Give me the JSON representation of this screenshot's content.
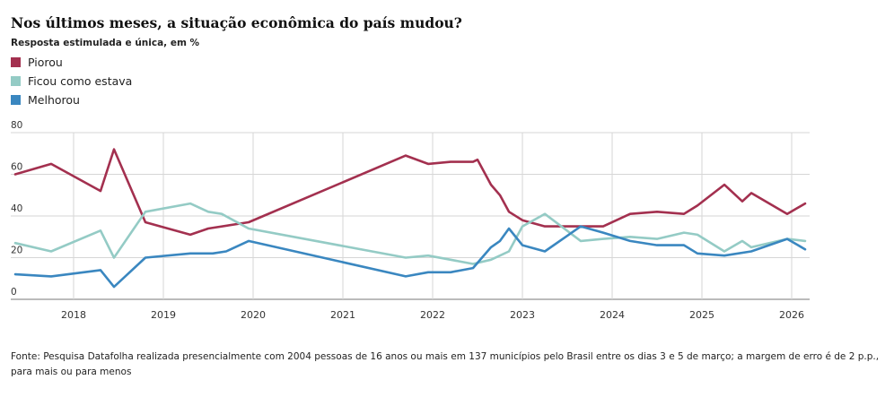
{
  "title": "Nos últimos meses, a situação econômica do país mudou?",
  "subtitle": "Resposta estimulada e única, em %",
  "source": "Fonte: Pesquisa Datafolha realizada presencialmente com 2004 pessoas de 16 anos ou mais em 137 municípios pelo Brasil entre os dias 3 e 5 de março; a margem de erro é de 2 p.p., para mais ou para menos",
  "chart_data": {
    "type": "line",
    "title": "Nos últimos meses, a situação econômica do país mudou?",
    "subtitle": "Resposta estimulada e única, em %",
    "xlabel": "",
    "ylabel": "",
    "ylim": [
      0,
      80
    ],
    "xlim": [
      2017.3,
      2026.2
    ],
    "yticks": [
      "0",
      "20",
      "40",
      "60",
      "80"
    ],
    "xticks": [
      "2018",
      "2019",
      "2020",
      "2021",
      "2022",
      "2023",
      "2024",
      "2025",
      "2026"
    ],
    "grid": true,
    "legend": "top-left",
    "series": [
      {
        "name": "Piorou",
        "color": "#a3304f",
        "points": [
          [
            2017.35,
            60
          ],
          [
            2017.75,
            65
          ],
          [
            2018.3,
            52
          ],
          [
            2018.45,
            72
          ],
          [
            2018.8,
            37
          ],
          [
            2019.3,
            31
          ],
          [
            2019.5,
            34
          ],
          [
            2019.95,
            37
          ],
          [
            2021.7,
            69
          ],
          [
            2021.95,
            65
          ],
          [
            2022.2,
            66
          ],
          [
            2022.45,
            66
          ],
          [
            2022.5,
            67
          ],
          [
            2022.65,
            55
          ],
          [
            2022.75,
            50
          ],
          [
            2022.85,
            42
          ],
          [
            2023.0,
            38
          ],
          [
            2023.25,
            35
          ],
          [
            2023.65,
            35
          ],
          [
            2023.9,
            35
          ],
          [
            2024.2,
            41
          ],
          [
            2024.5,
            42
          ],
          [
            2024.8,
            41
          ],
          [
            2024.95,
            45
          ],
          [
            2025.25,
            55
          ],
          [
            2025.45,
            47
          ],
          [
            2025.55,
            51
          ],
          [
            2025.95,
            41
          ],
          [
            2026.15,
            46
          ]
        ]
      },
      {
        "name": "Ficou como estava",
        "color": "#94cbc5",
        "points": [
          [
            2017.35,
            27
          ],
          [
            2017.75,
            23
          ],
          [
            2018.3,
            33
          ],
          [
            2018.45,
            20
          ],
          [
            2018.8,
            42
          ],
          [
            2019.3,
            46
          ],
          [
            2019.5,
            42
          ],
          [
            2019.65,
            41
          ],
          [
            2019.95,
            34
          ],
          [
            2021.7,
            20
          ],
          [
            2021.95,
            21
          ],
          [
            2022.2,
            19
          ],
          [
            2022.45,
            17
          ],
          [
            2022.65,
            19
          ],
          [
            2022.75,
            21
          ],
          [
            2022.85,
            23
          ],
          [
            2023.0,
            35
          ],
          [
            2023.25,
            41
          ],
          [
            2023.65,
            28
          ],
          [
            2023.9,
            29
          ],
          [
            2024.2,
            30
          ],
          [
            2024.5,
            29
          ],
          [
            2024.8,
            32
          ],
          [
            2024.95,
            31
          ],
          [
            2025.25,
            23
          ],
          [
            2025.45,
            28
          ],
          [
            2025.55,
            25
          ],
          [
            2025.95,
            29
          ],
          [
            2026.15,
            28
          ]
        ]
      },
      {
        "name": "Melhorou",
        "color": "#3a87c0",
        "points": [
          [
            2017.35,
            12
          ],
          [
            2017.75,
            11
          ],
          [
            2018.3,
            14
          ],
          [
            2018.45,
            6
          ],
          [
            2018.8,
            20
          ],
          [
            2019.3,
            22
          ],
          [
            2019.55,
            22
          ],
          [
            2019.7,
            23
          ],
          [
            2019.95,
            28
          ],
          [
            2021.7,
            11
          ],
          [
            2021.95,
            13
          ],
          [
            2022.2,
            13
          ],
          [
            2022.45,
            15
          ],
          [
            2022.65,
            25
          ],
          [
            2022.75,
            28
          ],
          [
            2022.85,
            34
          ],
          [
            2023.0,
            26
          ],
          [
            2023.25,
            23
          ],
          [
            2023.65,
            35
          ],
          [
            2023.9,
            32
          ],
          [
            2024.2,
            28
          ],
          [
            2024.5,
            26
          ],
          [
            2024.8,
            26
          ],
          [
            2024.95,
            22
          ],
          [
            2025.25,
            21
          ],
          [
            2025.55,
            23
          ],
          [
            2025.95,
            29
          ],
          [
            2026.15,
            24
          ]
        ]
      }
    ]
  }
}
